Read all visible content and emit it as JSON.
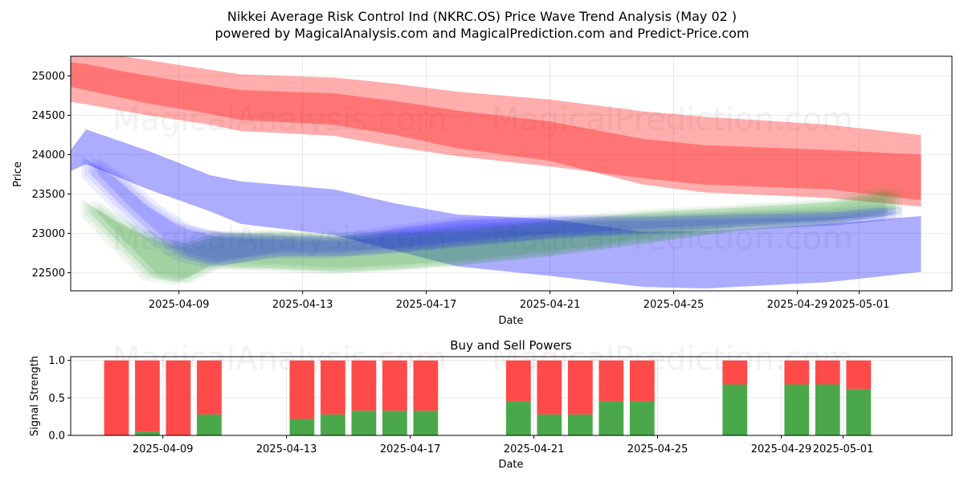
{
  "chart_data": [
    {
      "type": "area",
      "title": "Nikkei Average Risk Control Ind (NKRC.OS) Price Wave Trend Analysis (May 02 )",
      "subtitle": "powered by MagicalAnalysis.com and MagicalPrediction.com and Predict-Price.com",
      "xlabel": "Date",
      "ylabel": "Price",
      "xlim": [
        "2025-04-05T12:00",
        "2025-05-04T00:00"
      ],
      "ylim": [
        22270,
        25250
      ],
      "yticks": [
        22500,
        23000,
        23500,
        24000,
        24500,
        25000
      ],
      "xticks": [
        "2025-04-09",
        "2025-04-13",
        "2025-04-17",
        "2025-04-21",
        "2025-04-25",
        "2025-04-29",
        "2025-05-01"
      ],
      "grid": true,
      "watermarks": [
        "MagicalAnalysis.com",
        "MagicalPrediction.com"
      ],
      "series": [
        {
          "name": "red wave band (upper)",
          "color": "#ff0000",
          "x": [
            "2025-04-05",
            "2025-04-06",
            "2025-04-08",
            "2025-04-10",
            "2025-04-11",
            "2025-04-14",
            "2025-04-16",
            "2025-04-18",
            "2025-04-21",
            "2025-04-24",
            "2025-04-26",
            "2025-04-30",
            "2025-05-03"
          ],
          "upper": [
            25350,
            25320,
            25200,
            25080,
            25020,
            24980,
            24900,
            24800,
            24700,
            24550,
            24480,
            24380,
            24250
          ],
          "lower": [
            24700,
            24640,
            24500,
            24380,
            24300,
            24240,
            24100,
            23980,
            23850,
            23700,
            23620,
            23560,
            23420
          ]
        },
        {
          "name": "red wave band (lower)",
          "color": "#ff0000",
          "x": [
            "2025-04-05",
            "2025-04-06",
            "2025-04-08",
            "2025-04-10",
            "2025-04-11",
            "2025-04-14",
            "2025-04-16",
            "2025-04-18",
            "2025-04-21",
            "2025-04-24",
            "2025-04-26",
            "2025-04-30",
            "2025-05-03"
          ],
          "upper": [
            25200,
            25150,
            25000,
            24880,
            24820,
            24780,
            24680,
            24560,
            24420,
            24200,
            24120,
            24060,
            24000
          ],
          "lower": [
            24900,
            24820,
            24650,
            24520,
            24440,
            24380,
            24250,
            24080,
            23920,
            23620,
            23520,
            23450,
            23340
          ]
        },
        {
          "name": "blue wave band",
          "color": "#0000ff",
          "x": [
            "2025-04-05",
            "2025-04-06",
            "2025-04-08",
            "2025-04-10",
            "2025-04-11",
            "2025-04-14",
            "2025-04-16",
            "2025-04-18",
            "2025-04-21",
            "2025-04-24",
            "2025-04-26",
            "2025-04-30",
            "2025-05-03"
          ],
          "upper": [
            23800,
            24320,
            24050,
            23740,
            23660,
            23560,
            23380,
            23240,
            23180,
            23020,
            23030,
            23120,
            23220
          ],
          "lower": [
            23700,
            23880,
            23560,
            23280,
            23120,
            22980,
            22780,
            22580,
            22460,
            22320,
            22300,
            22380,
            22510
          ]
        },
        {
          "name": "green wave ensemble",
          "color": "#2ca02c",
          "x": [
            "2025-04-06",
            "2025-04-07",
            "2025-04-08",
            "2025-04-09",
            "2025-04-10",
            "2025-04-12",
            "2025-04-14",
            "2025-04-16",
            "2025-04-18",
            "2025-04-21",
            "2025-04-24",
            "2025-04-27",
            "2025-04-30",
            "2025-05-02"
          ],
          "upper": [
            23400,
            23150,
            22950,
            22850,
            22980,
            23000,
            22960,
            22990,
            23040,
            23150,
            23260,
            23320,
            23390,
            23560
          ],
          "lower": [
            23250,
            22850,
            22450,
            22380,
            22580,
            22560,
            22520,
            22560,
            22620,
            22740,
            22900,
            23060,
            23140,
            23260
          ]
        },
        {
          "name": "blue wave ensemble",
          "color": "#0000ff",
          "x": [
            "2025-04-06",
            "2025-04-07",
            "2025-04-08",
            "2025-04-09",
            "2025-04-10",
            "2025-04-12",
            "2025-04-14",
            "2025-04-16",
            "2025-04-18",
            "2025-04-21",
            "2025-04-24",
            "2025-04-27",
            "2025-04-30",
            "2025-05-02"
          ],
          "upper": [
            23950,
            23700,
            23350,
            23100,
            23000,
            22960,
            22940,
            23060,
            23160,
            23200,
            23200,
            23230,
            23260,
            23330
          ],
          "lower": [
            23750,
            23350,
            22980,
            22700,
            22600,
            22720,
            22720,
            22780,
            22860,
            22960,
            23020,
            23080,
            23120,
            23200
          ]
        }
      ]
    },
    {
      "type": "bar",
      "title": "Buy and Sell Powers",
      "xlabel": "Date",
      "ylabel": "Signal Strength",
      "xlim": [
        "2025-04-05T12:00",
        "2025-05-04T00:00"
      ],
      "ylim": [
        0,
        1.05
      ],
      "yticks": [
        "0.0",
        "0.5",
        "1.0"
      ],
      "xticks": [
        "2025-04-09",
        "2025-04-13",
        "2025-04-17",
        "2025-04-21",
        "2025-04-25",
        "2025-04-29",
        "2025-05-01"
      ],
      "buy_color": "#4aa84a",
      "sell_color": "#ff4a4a",
      "categories": [
        "2025-04-07",
        "2025-04-08",
        "2025-04-09",
        "2025-04-10",
        "2025-04-13",
        "2025-04-14",
        "2025-04-15",
        "2025-04-16",
        "2025-04-17",
        "2025-04-20",
        "2025-04-21",
        "2025-04-22",
        "2025-04-23",
        "2025-04-24",
        "2025-04-27",
        "2025-04-29",
        "2025-04-30",
        "2025-05-01"
      ],
      "series": [
        {
          "name": "Buy",
          "values": [
            0.0,
            0.05,
            0.0,
            0.28,
            0.22,
            0.28,
            0.33,
            0.33,
            0.33,
            0.46,
            0.28,
            0.28,
            0.46,
            0.46,
            0.68,
            0.68,
            0.68,
            0.62
          ]
        },
        {
          "name": "Sell",
          "values": [
            1.0,
            0.95,
            1.0,
            0.72,
            0.78,
            0.72,
            0.67,
            0.67,
            0.67,
            0.54,
            0.72,
            0.72,
            0.54,
            0.54,
            0.32,
            0.32,
            0.32,
            0.38
          ]
        }
      ]
    }
  ]
}
